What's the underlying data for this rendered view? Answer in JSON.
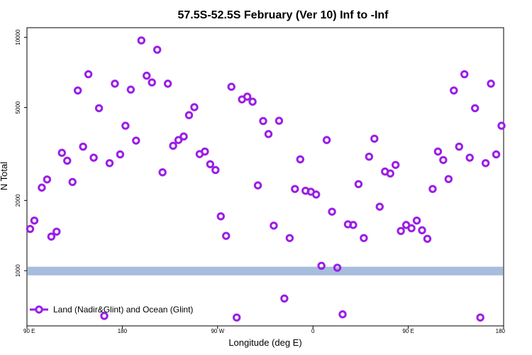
{
  "chart_data": {
    "type": "scatter",
    "title": "57.5S-52.5S February (Ver 10)   Inf to -Inf",
    "xlabel": "Longitude (deg E)",
    "ylabel": "N Total",
    "y_scale": "log",
    "x_ticks": [
      {
        "value": 90,
        "label": "90 E"
      },
      {
        "value": 180,
        "label": "180"
      },
      {
        "value": 270,
        "label": "90 W"
      },
      {
        "value": 360,
        "label": "0"
      },
      {
        "value": 450,
        "label": "90 E"
      },
      {
        "value": 540,
        "label": "180"
      }
    ],
    "y_ticks": [
      {
        "value": 1000,
        "label": "1000"
      },
      {
        "value": 2000,
        "label": "2000"
      },
      {
        "value": 5000,
        "label": "5000"
      },
      {
        "value": 10000,
        "label": "10000"
      }
    ],
    "xlim": [
      90,
      540
    ],
    "ylim": [
      580,
      11000
    ],
    "band": {
      "y_low": 955,
      "y_high": 1040,
      "color": "#a7bddd"
    },
    "series": [
      {
        "name": "Land (Nadir&Glint) and Ocean (Glint)",
        "color": "#9b1ee6",
        "x": [
          93,
          97,
          104,
          109,
          113,
          118,
          123,
          128,
          133,
          138,
          143,
          148,
          153,
          158,
          163,
          168,
          173,
          178,
          183,
          188,
          193,
          198,
          203,
          208,
          213,
          218,
          223,
          228,
          233,
          238,
          243,
          248,
          253,
          258,
          263,
          268,
          273,
          278,
          283,
          288,
          293,
          298,
          303,
          308,
          313,
          318,
          323,
          328,
          333,
          338,
          343,
          348,
          353,
          358,
          363,
          368,
          373,
          378,
          383,
          388,
          393,
          398,
          403,
          408,
          413,
          418,
          423,
          428,
          433,
          438,
          443,
          448,
          453,
          458,
          463,
          468,
          473,
          478,
          483,
          488,
          493,
          498,
          503,
          508,
          513,
          518,
          523,
          528,
          533,
          538
        ],
        "y": [
          1510,
          1640,
          2270,
          2460,
          1400,
          1470,
          3200,
          2960,
          2400,
          5920,
          3400,
          6950,
          3050,
          4970,
          640,
          2890,
          6330,
          3150,
          4180,
          5970,
          3610,
          9700,
          6850,
          6410,
          8850,
          2640,
          6330,
          3430,
          3630,
          3760,
          4640,
          5020,
          3160,
          3240,
          2860,
          2700,
          1710,
          1410,
          6140,
          630,
          5420,
          5570,
          5300,
          2320,
          4380,
          3850,
          1560,
          4390,
          760,
          1380,
          2240,
          3000,
          2200,
          2180,
          2120,
          1050,
          3630,
          1790,
          1030,
          650,
          1580,
          1570,
          2350,
          1380,
          3080,
          3680,
          1880,
          2660,
          2610,
          2840,
          1480,
          1570,
          1520,
          1640,
          1490,
          1370,
          2240,
          3240,
          2980,
          2470,
          5920,
          3400,
          6950,
          3050,
          4970,
          630,
          2890,
          6330,
          3150,
          4180
        ]
      }
    ],
    "legend": {
      "position": "bottom-left"
    },
    "grid": false
  }
}
